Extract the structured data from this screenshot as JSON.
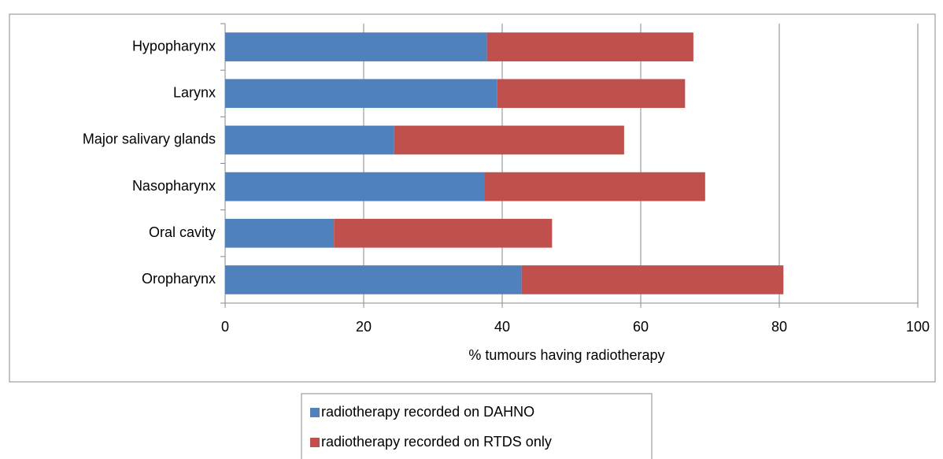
{
  "chart_data": {
    "type": "stacked_barh",
    "categories": [
      "Hypopharynx",
      "Larynx",
      "Major salivary glands",
      "Nasopharynx",
      "Oral cavity",
      "Oropharynx"
    ],
    "series": [
      {
        "name": "radiotherapy recorded on DAHNO",
        "color": "#4f81bd",
        "values": [
          37.8,
          39.3,
          24.4,
          37.5,
          15.7,
          42.8
        ]
      },
      {
        "name": "radiotherapy recorded on RTDS only",
        "color": "#c0504d",
        "values": [
          29.8,
          27.1,
          33.2,
          31.8,
          31.5,
          37.8
        ]
      }
    ],
    "xlabel": "% tumours having radiotherapy",
    "xlim": [
      0,
      100
    ],
    "xticks": [
      0,
      20,
      40,
      60,
      80,
      100
    ],
    "grid": true,
    "legend": "bottom"
  }
}
